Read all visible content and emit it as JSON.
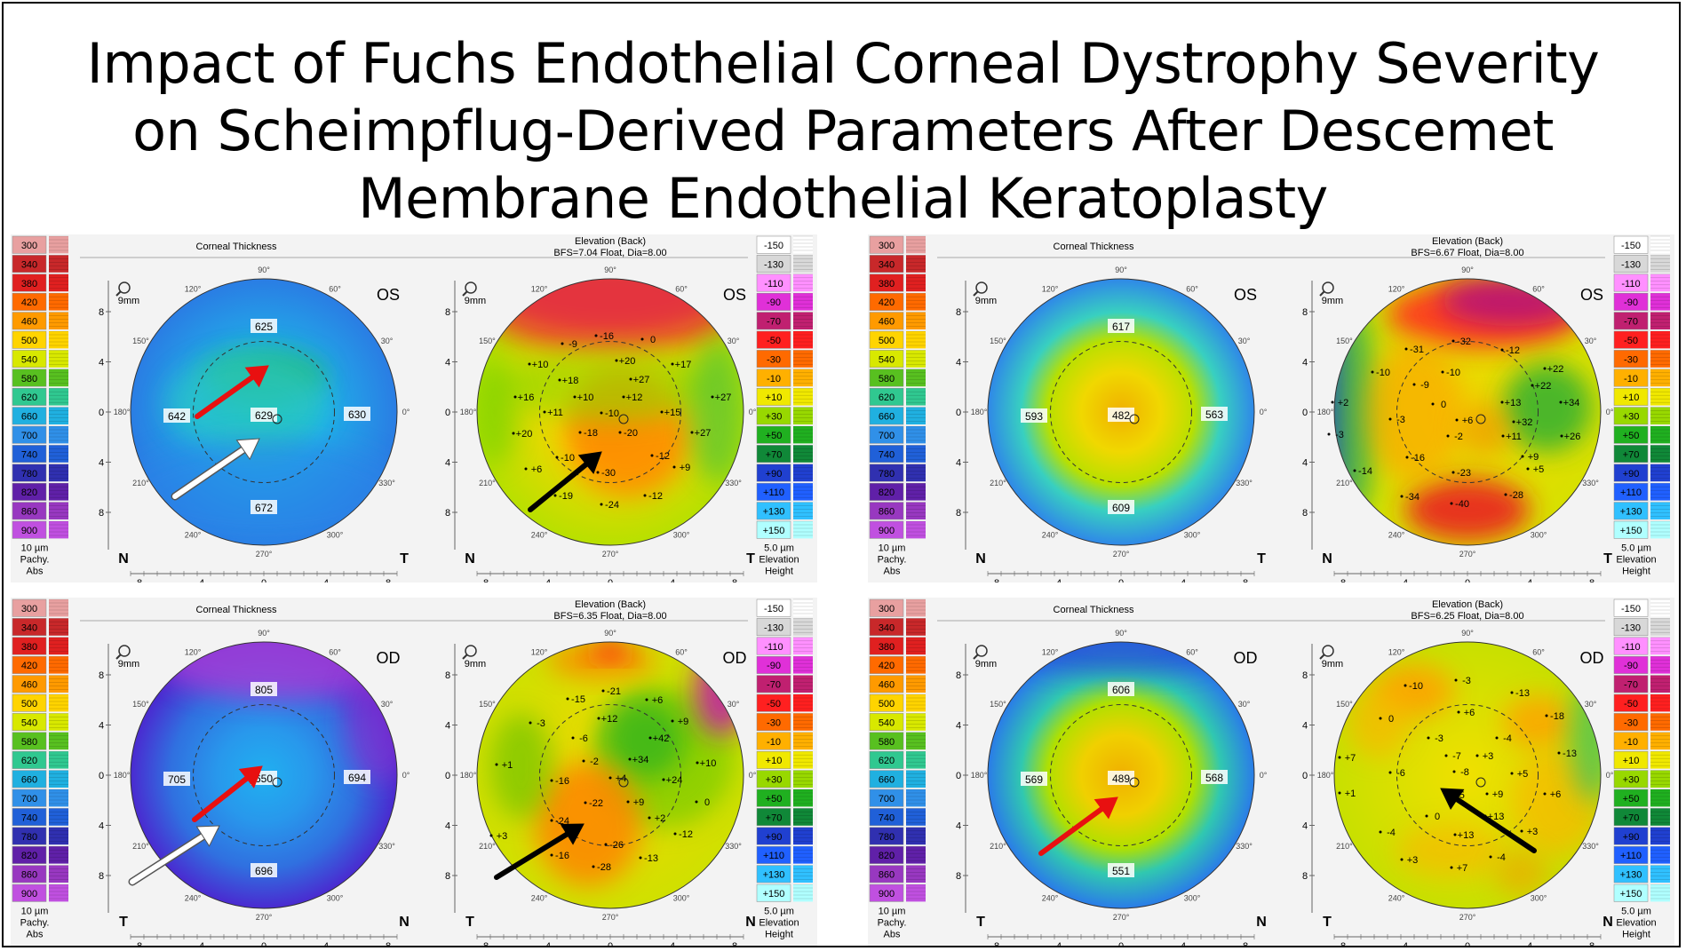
{
  "title": {
    "line1": "Impact of Fuchs Endothelial Corneal Dystrophy Severity",
    "line2": "on Scheimpflug-Derived Parameters After Descemet",
    "line3": "Membrane Endothelial Keratoplasty"
  },
  "scales": {
    "pachy": {
      "values": [
        "300",
        "340",
        "380",
        "420",
        "460",
        "500",
        "540",
        "580",
        "620",
        "660",
        "700",
        "740",
        "780",
        "820",
        "860",
        "900"
      ],
      "colors": [
        "#e8a0a0",
        "#c8282a",
        "#e02020",
        "#ff6a00",
        "#ff9a00",
        "#ffd400",
        "#d8e800",
        "#58c020",
        "#30c890",
        "#20b0e0",
        "#3090e8",
        "#2060d8",
        "#3030b0",
        "#6020a8",
        "#9838c0",
        "#c050e0"
      ],
      "unit": "10 µm",
      "label1": "Pachy.",
      "label2": "Abs"
    },
    "elev": {
      "values": [
        "-150",
        "-130",
        "-110",
        "-90",
        "-70",
        "-50",
        "-30",
        "-10",
        "+10",
        "+30",
        "+50",
        "+70",
        "+90",
        "+110",
        "+130",
        "+150"
      ],
      "colors": [
        "#ffffff",
        "#d8d8d8",
        "#ff90ff",
        "#e030d8",
        "#c02070",
        "#ff2020",
        "#ff6a00",
        "#ffb000",
        "#f0e800",
        "#98d800",
        "#20b020",
        "#108838",
        "#2040d0",
        "#2060ff",
        "#30c0ff",
        "#b0ffff"
      ],
      "unit": "5.0 µm",
      "label1": "Elevation",
      "label2": "Height"
    }
  },
  "common": {
    "thickness_title": "Corneal Thickness",
    "elevation_title": "Elevation (Back)",
    "zoom": "9mm",
    "angles": [
      "90°",
      "60°",
      "30°",
      "0°",
      "330°",
      "300°",
      "270°",
      "240°",
      "210°",
      "180°",
      "150°",
      "120°"
    ],
    "axis_ticks": [
      "8",
      "4",
      "0",
      "4",
      "8"
    ]
  },
  "panels": [
    {
      "eye": "OS",
      "left_corner": "N",
      "right_corner": "T",
      "bfs": "BFS=7.04 Float, Dia=8.00",
      "thickness_values": [
        "625",
        "642",
        "629",
        "630",
        "672"
      ],
      "elevation_values": [
        "-9",
        "-16",
        "0",
        "+10",
        "+20",
        "+17",
        "+18",
        "+27",
        "+16",
        "+10",
        "+12",
        "+27",
        "+11",
        "-10",
        "+15",
        "+20",
        "-18",
        "-20",
        "+27",
        "+6",
        "-10",
        "-12",
        "-30",
        "+9",
        "-19",
        "-24",
        "-12"
      ]
    },
    {
      "eye": "OS",
      "left_corner": "N",
      "right_corner": "T",
      "bfs": "BFS=6.67 Float, Dia=8.00",
      "thickness_values": [
        "617",
        "593",
        "482",
        "563",
        "609"
      ],
      "elevation_values": [
        "-32",
        "-31",
        "-12",
        "+22",
        "-10",
        "-10",
        "-9",
        "+22",
        "+2",
        "0",
        "+13",
        "+34",
        "-3",
        "+6",
        "+32",
        "-3",
        "-2",
        "+11",
        "+26",
        "-16",
        "+9",
        "-14",
        "-23",
        "+5",
        "-34",
        "-40",
        "-28"
      ]
    },
    {
      "eye": "OD",
      "left_corner": "T",
      "right_corner": "N",
      "bfs": "BFS=6.35 Float, Dia=8.00",
      "thickness_values": [
        "805",
        "705",
        "650",
        "694",
        "696"
      ],
      "elevation_values": [
        "-21",
        "-15",
        "+6",
        "-3",
        "+12",
        "+9",
        "-6",
        "+42",
        "+1",
        "-2",
        "+34",
        "+10",
        "-16",
        "+4",
        "+24",
        "-22",
        "+9",
        "0",
        "+3",
        "-24",
        "+2",
        "-12",
        "-16",
        "-26",
        "-13",
        "-28"
      ]
    },
    {
      "eye": "OD",
      "left_corner": "T",
      "right_corner": "N",
      "bfs": "BFS=6.25 Float, Dia=8.00",
      "thickness_values": [
        "606",
        "569",
        "489",
        "568",
        "551"
      ],
      "elevation_values": [
        "-10",
        "-3",
        "-13",
        "+6",
        "-18",
        "0",
        "-3",
        "-4",
        "-13",
        "+7",
        "-7",
        "+3",
        "-6",
        "-8",
        "+5",
        "+1",
        "-5",
        "+9",
        "+6",
        "+13",
        "0",
        "+3",
        "-4",
        "+13",
        "+3",
        "-4",
        "+7"
      ]
    }
  ]
}
